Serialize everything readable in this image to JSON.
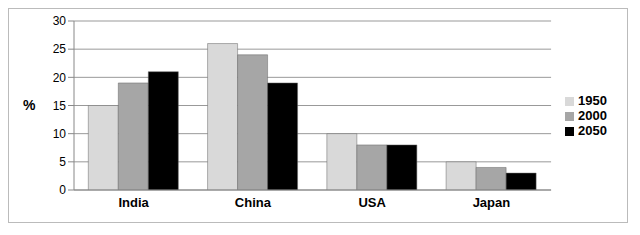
{
  "chart_data": {
    "type": "bar",
    "y_label": "%",
    "categories": [
      "India",
      "China",
      "USA",
      "Japan"
    ],
    "series": [
      {
        "name": "1950",
        "color": "#d9d9d9",
        "values": [
          15,
          26,
          10,
          5
        ]
      },
      {
        "name": "2000",
        "color": "#a6a6a6",
        "values": [
          19,
          24,
          8,
          4
        ]
      },
      {
        "name": "2050",
        "color": "#000000",
        "values": [
          21,
          19,
          8,
          3
        ]
      }
    ],
    "ylim": [
      0,
      30
    ],
    "yticks": [
      0,
      5,
      10,
      15,
      20,
      25,
      30
    ],
    "grid": true,
    "legend": "right"
  }
}
